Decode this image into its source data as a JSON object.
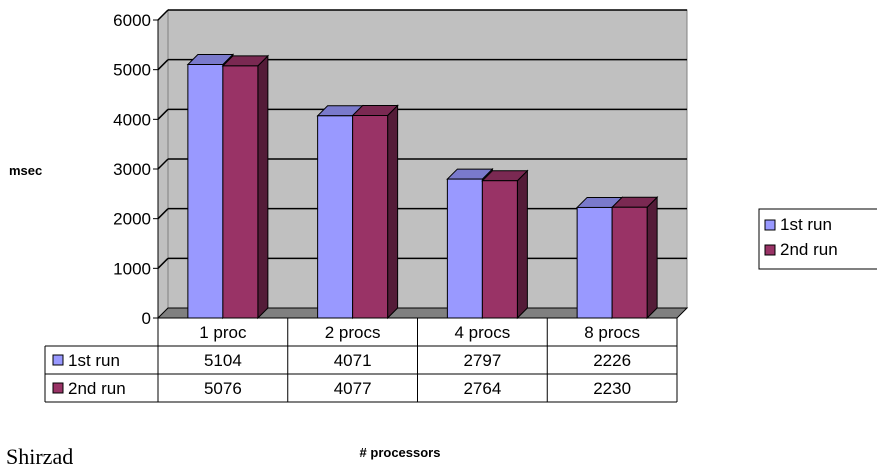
{
  "chart_data": {
    "type": "bar",
    "title": "",
    "ylabel": "msec",
    "xlabel": "# processors",
    "categories": [
      "1 proc",
      "2 procs",
      "4 procs",
      "8 procs"
    ],
    "series": [
      {
        "name": "1st run",
        "values": [
          5104,
          4071,
          2797,
          2226
        ],
        "color": "#9999ff"
      },
      {
        "name": "2nd run",
        "values": [
          5076,
          4077,
          2764,
          2230
        ],
        "color": "#993366"
      }
    ],
    "ylim": [
      0,
      6000
    ],
    "yticks": [
      0,
      1000,
      2000,
      3000,
      4000,
      5000,
      6000
    ],
    "grid": true,
    "legend": "right",
    "data_table": true,
    "wall_color": "#c0c0c0",
    "floor_color": "#808080"
  },
  "clipped_text": "Shirzad"
}
